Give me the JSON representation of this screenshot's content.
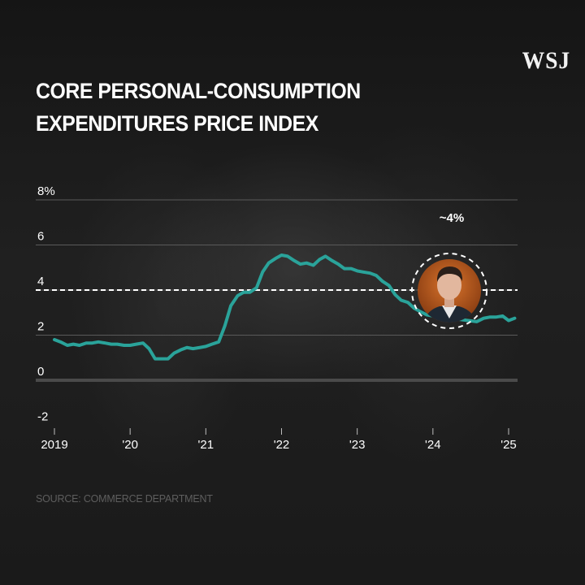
{
  "logo": "WSJ",
  "title_lines": [
    "CORE PERSONAL-CONSUMPTION",
    "EXPENDITURES PRICE INDEX"
  ],
  "source": "SOURCE: COMMERCE DEPARTMENT",
  "colors": {
    "line": "#2aa39a",
    "grid": "#5a5a5a",
    "zero": "#4a4a4a",
    "text": "#ffffff",
    "ring": "#ffffff",
    "portrait_bg": "#b8581c"
  },
  "chart_data": {
    "type": "line",
    "title": "CORE PERSONAL-CONSUMPTION EXPENDITURES PRICE INDEX",
    "xlabel": "",
    "ylabel": "",
    "ylim": [
      -2,
      8
    ],
    "y_ticks": [
      8,
      6,
      4,
      2,
      0,
      -2
    ],
    "y_tick_labels": [
      "8%",
      "6",
      "4",
      "2",
      "0",
      "-2"
    ],
    "x_ticks": [
      2019,
      2020,
      2021,
      2022,
      2023,
      2024,
      2025
    ],
    "x_tick_labels": [
      "2019",
      "'20",
      "'21",
      "'22",
      "'23",
      "'24",
      "'25"
    ],
    "xlim": [
      2019,
      2025.15
    ],
    "grid": true,
    "reference_line": {
      "value": 4,
      "style": "dashed"
    },
    "annotation": {
      "text": "~4%",
      "x": 2024.25,
      "y": 4.0
    },
    "series": [
      {
        "x": [
          2019.0,
          2019.08,
          2019.17,
          2019.25,
          2019.33,
          2019.42,
          2019.5,
          2019.58,
          2019.67,
          2019.75,
          2019.83,
          2019.92,
          2020.0,
          2020.08,
          2020.17,
          2020.25,
          2020.33,
          2020.42,
          2020.5,
          2020.58,
          2020.67,
          2020.75,
          2020.83,
          2020.92,
          2021.0,
          2021.08,
          2021.17,
          2021.25,
          2021.33,
          2021.42,
          2021.5,
          2021.58,
          2021.67,
          2021.75,
          2021.83,
          2021.92,
          2022.0,
          2022.08,
          2022.17,
          2022.25,
          2022.33,
          2022.42,
          2022.5,
          2022.58,
          2022.67,
          2022.75,
          2022.83,
          2022.92,
          2023.0,
          2023.08,
          2023.17,
          2023.25,
          2023.33,
          2023.42,
          2023.5,
          2023.58,
          2023.67,
          2023.75,
          2023.83,
          2023.92,
          2024.0,
          2024.58,
          2024.67,
          2024.75,
          2024.83,
          2024.92,
          2025.0,
          2025.08
        ],
        "values": [
          1.8,
          1.7,
          1.55,
          1.6,
          1.55,
          1.65,
          1.65,
          1.7,
          1.65,
          1.6,
          1.6,
          1.55,
          1.55,
          1.6,
          1.65,
          1.4,
          0.95,
          0.95,
          0.95,
          1.2,
          1.35,
          1.45,
          1.4,
          1.45,
          1.5,
          1.6,
          1.7,
          2.4,
          3.3,
          3.75,
          3.9,
          3.9,
          4.1,
          4.8,
          5.2,
          5.4,
          5.55,
          5.5,
          5.3,
          5.15,
          5.2,
          5.1,
          5.35,
          5.5,
          5.3,
          5.15,
          4.95,
          4.95,
          4.85,
          4.8,
          4.75,
          4.65,
          4.4,
          4.2,
          3.8,
          3.55,
          3.45,
          3.2,
          3.05,
          2.9,
          2.85,
          2.6,
          2.75,
          2.8,
          2.8,
          2.85,
          2.65,
          2.75
        ]
      }
    ]
  }
}
